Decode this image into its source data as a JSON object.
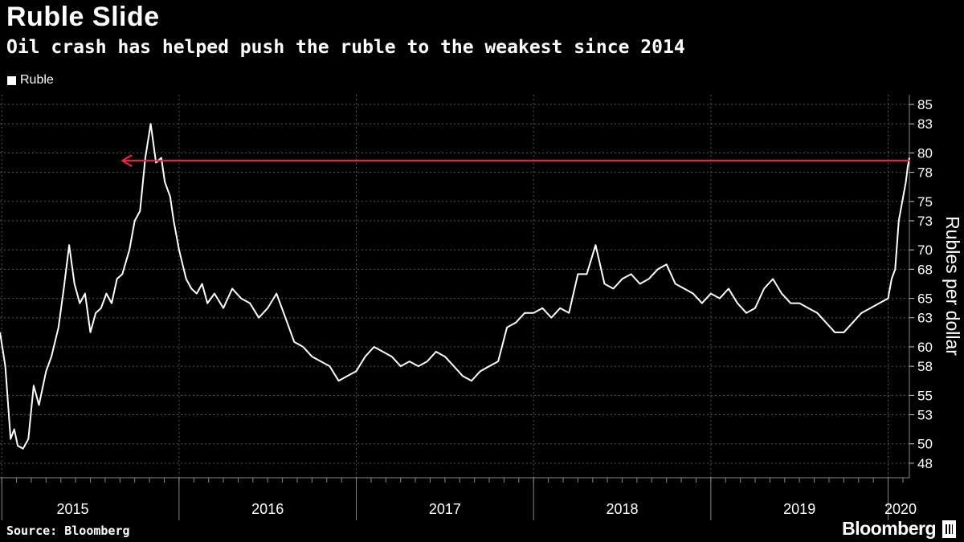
{
  "header": {
    "title": "Ruble Slide",
    "subtitle": "Oil crash has helped push the ruble to the weakest since 2014"
  },
  "footer": {
    "source": "Source: Bloomberg",
    "brand": "Bloomberg"
  },
  "colors": {
    "background": "#000000",
    "line": "#ffffff",
    "annotation_arrow": "#ff1f4b",
    "grid": "#555555"
  },
  "chart_data": {
    "type": "line",
    "title": "Ruble Slide",
    "subtitle": "Oil crash has helped push the ruble to the weakest since 2014",
    "ylabel": "Rubles per dollar",
    "ylim": [
      46.5,
      86
    ],
    "y_ticks": [
      48,
      50,
      53,
      55,
      58,
      60,
      63,
      65,
      68,
      70,
      73,
      75,
      78,
      80,
      83,
      85
    ],
    "x_range": [
      2014.99,
      2020.12
    ],
    "x_year_ticks": [
      2015,
      2016,
      2017,
      2018,
      2019,
      2020
    ],
    "x_labels": [
      {
        "label": "2015",
        "center": 2015.4
      },
      {
        "label": "2016",
        "center": 2016.5
      },
      {
        "label": "2017",
        "center": 2017.5
      },
      {
        "label": "2018",
        "center": 2018.5
      },
      {
        "label": "2019",
        "center": 2019.5
      },
      {
        "label": "2020",
        "center": 2020.07
      }
    ],
    "grid": true,
    "legend": {
      "position": "top-left",
      "entries": [
        "Ruble"
      ]
    },
    "series": [
      {
        "name": "Ruble",
        "x": [
          2014.99,
          2015.02,
          2015.05,
          2015.07,
          2015.09,
          2015.12,
          2015.15,
          2015.18,
          2015.21,
          2015.25,
          2015.28,
          2015.32,
          2015.35,
          2015.38,
          2015.41,
          2015.44,
          2015.47,
          2015.5,
          2015.53,
          2015.56,
          2015.59,
          2015.62,
          2015.65,
          2015.68,
          2015.72,
          2015.75,
          2015.78,
          2015.81,
          2015.84,
          2015.87,
          2015.9,
          2015.92,
          2015.95,
          2015.97,
          2016.0,
          2016.02,
          2016.04,
          2016.07,
          2016.1,
          2016.13,
          2016.16,
          2016.2,
          2016.25,
          2016.3,
          2016.35,
          2016.4,
          2016.45,
          2016.5,
          2016.55,
          2016.6,
          2016.65,
          2016.7,
          2016.75,
          2016.8,
          2016.85,
          2016.9,
          2016.95,
          2017.0,
          2017.05,
          2017.1,
          2017.15,
          2017.2,
          2017.25,
          2017.3,
          2017.35,
          2017.4,
          2017.45,
          2017.5,
          2017.55,
          2017.6,
          2017.65,
          2017.7,
          2017.75,
          2017.8,
          2017.85,
          2017.9,
          2017.95,
          2018.0,
          2018.05,
          2018.1,
          2018.15,
          2018.2,
          2018.25,
          2018.3,
          2018.35,
          2018.4,
          2018.45,
          2018.5,
          2018.55,
          2018.6,
          2018.65,
          2018.7,
          2018.75,
          2018.8,
          2018.85,
          2018.9,
          2018.95,
          2019.0,
          2019.05,
          2019.1,
          2019.15,
          2019.2,
          2019.25,
          2019.3,
          2019.35,
          2019.4,
          2019.45,
          2019.5,
          2019.55,
          2019.6,
          2019.65,
          2019.7,
          2019.75,
          2019.8,
          2019.85,
          2019.9,
          2019.95,
          2020.0,
          2020.02,
          2020.04,
          2020.06,
          2020.08,
          2020.1,
          2020.11,
          2020.12
        ],
        "values": [
          61.5,
          58.0,
          50.5,
          51.5,
          49.8,
          49.5,
          50.5,
          56.0,
          54.0,
          57.5,
          59.0,
          62.0,
          66.0,
          70.5,
          66.5,
          64.5,
          65.5,
          61.5,
          63.5,
          64.0,
          65.5,
          64.5,
          67.0,
          67.5,
          70.0,
          73.0,
          74.0,
          79.5,
          83.0,
          79.0,
          79.5,
          77.0,
          75.5,
          73.0,
          70.0,
          68.5,
          67.0,
          66.0,
          65.5,
          66.5,
          64.5,
          65.5,
          64.0,
          66.0,
          65.0,
          64.5,
          63.0,
          64.0,
          65.5,
          63.0,
          60.5,
          60.0,
          59.0,
          58.5,
          58.0,
          56.5,
          57.0,
          57.5,
          59.0,
          60.0,
          59.5,
          59.0,
          58.0,
          58.5,
          58.0,
          58.5,
          59.5,
          59.0,
          58.0,
          57.0,
          56.5,
          57.5,
          58.0,
          58.5,
          62.0,
          62.5,
          63.5,
          63.5,
          64.0,
          63.0,
          64.0,
          63.5,
          67.5,
          67.5,
          70.5,
          66.5,
          66.0,
          67.0,
          67.5,
          66.5,
          67.0,
          68.0,
          68.5,
          66.5,
          66.0,
          65.5,
          64.5,
          65.5,
          65.0,
          66.0,
          64.5,
          63.5,
          64.0,
          66.0,
          67.0,
          65.5,
          64.5,
          64.5,
          64.0,
          63.5,
          62.5,
          61.5,
          61.5,
          62.5,
          63.5,
          64.0,
          64.5,
          65.0,
          67.0,
          68.0,
          73.0,
          75.0,
          77.0,
          78.5,
          79.5
        ]
      }
    ],
    "annotation": {
      "type": "arrow",
      "from": {
        "x": 2020.12,
        "y": 79.2
      },
      "to": {
        "x": 2015.68,
        "y": 79.2
      },
      "color": "#ff1f4b"
    }
  }
}
